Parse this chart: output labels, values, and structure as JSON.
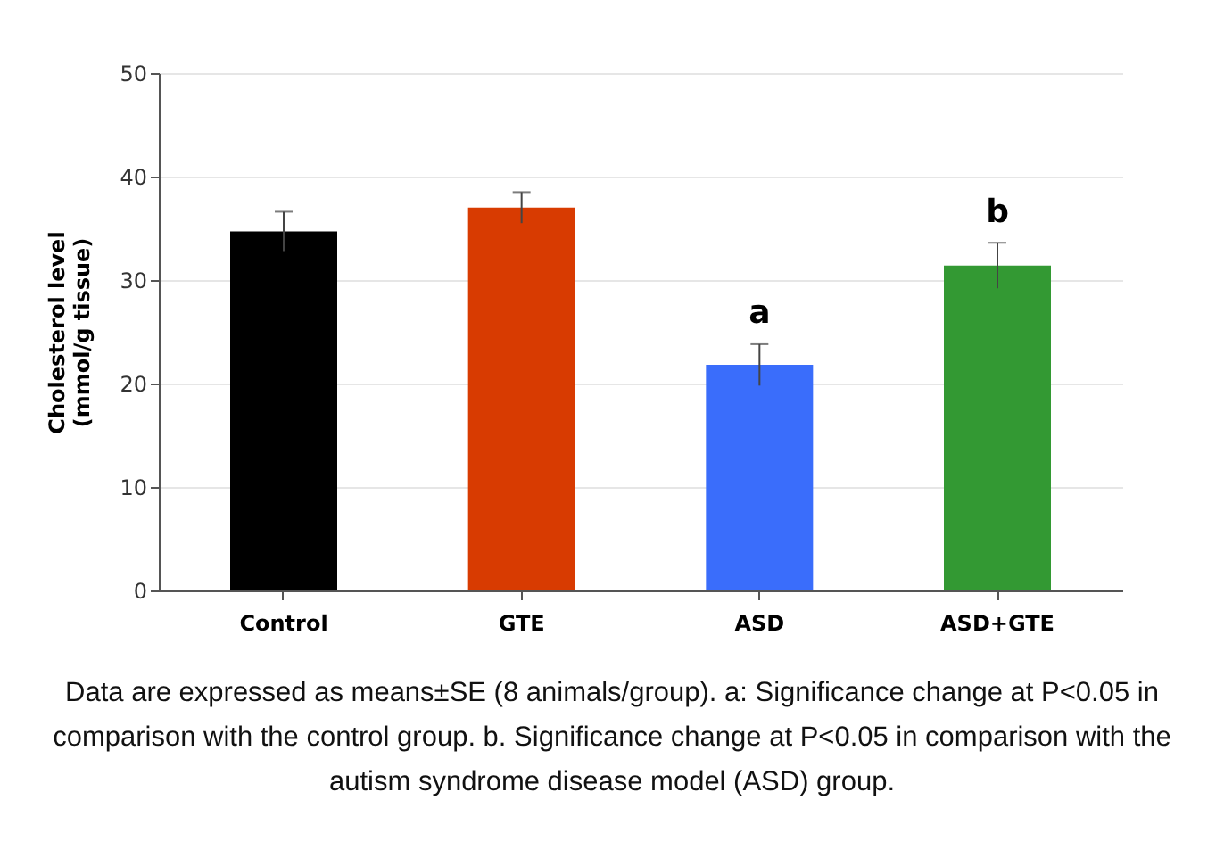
{
  "chart_data": {
    "type": "bar",
    "ylabel": "Cholesterol level\n(mmol/g tissue)",
    "categories": [
      "Control",
      "GTE",
      "ASD",
      "ASD+GTE"
    ],
    "values": [
      34.7,
      37,
      21.8,
      31.4
    ],
    "colors": [
      "#000000",
      "#d83b01",
      "#3a6dfb",
      "#339933"
    ],
    "errors": [
      1.9,
      1.5,
      2.0,
      2.2
    ],
    "ylim": [
      0,
      50
    ],
    "yticks": [
      0,
      10,
      20,
      30,
      40,
      50
    ],
    "grid": "y",
    "annotations": [
      {
        "text": "a",
        "x": "ASD",
        "y": 24.8
      },
      {
        "text": "b",
        "x": "ASD+GTE",
        "y": 34.6
      },
      "Data are expressed as means±SE (8 animals/group). a: Significance change at P<0.05 in comparison with the control group. b. Significance change at P<0.05 in comparison with the autism syndrome disease model (ASD) group."
    ]
  }
}
